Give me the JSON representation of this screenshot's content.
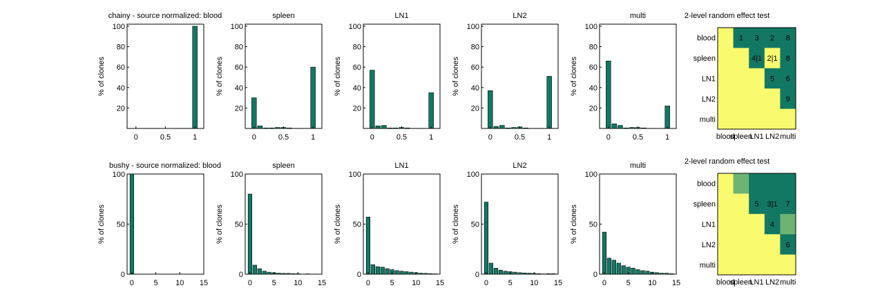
{
  "colors": {
    "bar": "#127864",
    "sig_dark": "#127864",
    "sig_light": "#6db372",
    "nonsig": "#fafa6e",
    "axis": "#000000",
    "background": "#ffffff"
  },
  "ylabel": "% of clones",
  "chart_data": [
    {
      "type": "bar",
      "row": "chainy",
      "title": "chainy - source normalized: blood",
      "ylabel": "% of clones",
      "x": [
        0,
        0.1,
        0.2,
        0.3,
        0.4,
        0.5,
        0.6,
        0.7,
        0.8,
        0.9,
        1
      ],
      "values": [
        0,
        0,
        0,
        0,
        0,
        0,
        0,
        0,
        0,
        0,
        100
      ],
      "xlim": [
        -0.15,
        1.15
      ],
      "ylim": [
        0,
        102
      ],
      "xticks": [
        0,
        0.5,
        1
      ],
      "xticklabels": [
        "0",
        "0.5",
        "1"
      ],
      "yticks": [
        20,
        40,
        60,
        80,
        100
      ],
      "yticklabels": [
        "20",
        "40",
        "60",
        "80",
        "100"
      ],
      "bar_width": 0.08
    },
    {
      "type": "bar",
      "row": "chainy",
      "title": "spleen",
      "ylabel": "% of clones",
      "x": [
        0,
        0.1,
        0.2,
        0.3,
        0.4,
        0.5,
        0.6,
        0.7,
        0.8,
        0.9,
        1
      ],
      "values": [
        30,
        2.5,
        0.5,
        0.5,
        1,
        1,
        0.5,
        0,
        0,
        0,
        60
      ],
      "xlim": [
        -0.15,
        1.15
      ],
      "ylim": [
        0,
        102
      ],
      "xticks": [
        0,
        0.5,
        1
      ],
      "xticklabels": [
        "0",
        "0.5",
        "1"
      ],
      "yticks": [
        20,
        40,
        60,
        80,
        100
      ],
      "yticklabels": [
        "20",
        "40",
        "60",
        "80",
        "100"
      ],
      "bar_width": 0.08
    },
    {
      "type": "bar",
      "row": "chainy",
      "title": "LN1",
      "ylabel": "% of clones",
      "x": [
        0,
        0.1,
        0.2,
        0.3,
        0.4,
        0.5,
        0.6,
        0.7,
        0.8,
        0.9,
        1
      ],
      "values": [
        57,
        2.5,
        3,
        0.5,
        0.5,
        1,
        0.5,
        0,
        0,
        0,
        35
      ],
      "xlim": [
        -0.15,
        1.15
      ],
      "ylim": [
        0,
        102
      ],
      "xticks": [
        0,
        0.5,
        1
      ],
      "xticklabels": [
        "0",
        "0.5",
        "1"
      ],
      "yticks": [
        20,
        40,
        60,
        80,
        100
      ],
      "yticklabels": [
        "20",
        "40",
        "60",
        "80",
        "100"
      ],
      "bar_width": 0.08
    },
    {
      "type": "bar",
      "row": "chainy",
      "title": "LN2",
      "ylabel": "% of clones",
      "x": [
        0,
        0.1,
        0.2,
        0.3,
        0.4,
        0.5,
        0.6,
        0.7,
        0.8,
        0.9,
        1
      ],
      "values": [
        37,
        2,
        3,
        0.5,
        1,
        1.5,
        0.5,
        0,
        0,
        0,
        51
      ],
      "xlim": [
        -0.15,
        1.15
      ],
      "ylim": [
        0,
        102
      ],
      "xticks": [
        0,
        0.5,
        1
      ],
      "xticklabels": [
        "0",
        "0.5",
        "1"
      ],
      "yticks": [
        20,
        40,
        60,
        80,
        100
      ],
      "yticklabels": [
        "20",
        "40",
        "60",
        "80",
        "100"
      ],
      "bar_width": 0.08
    },
    {
      "type": "bar",
      "row": "chainy",
      "title": "multi",
      "ylabel": "% of clones",
      "x": [
        0,
        0.1,
        0.2,
        0.3,
        0.4,
        0.5,
        0.6,
        0.7,
        0.8,
        0.9,
        1
      ],
      "values": [
        66,
        4.5,
        3,
        0.5,
        1,
        1,
        0.5,
        0,
        0,
        0,
        22
      ],
      "xlim": [
        -0.15,
        1.15
      ],
      "ylim": [
        0,
        102
      ],
      "xticks": [
        0,
        0.5,
        1
      ],
      "xticklabels": [
        "0",
        "0.5",
        "1"
      ],
      "yticks": [
        20,
        40,
        60,
        80,
        100
      ],
      "yticklabels": [
        "20",
        "40",
        "60",
        "80",
        "100"
      ],
      "bar_width": 0.08
    },
    {
      "type": "bar",
      "row": "bushy",
      "title": "bushy - source normalized: blood",
      "ylabel": "% of clones",
      "x": [
        0,
        1,
        2,
        3,
        4,
        5,
        6,
        7,
        8,
        9,
        10,
        11,
        12,
        13,
        14
      ],
      "values": [
        100,
        0,
        0,
        0,
        0,
        0,
        0,
        0,
        0,
        0,
        0,
        0,
        0,
        0,
        0
      ],
      "xlim": [
        -1,
        15
      ],
      "ylim": [
        0,
        100
      ],
      "xticks": [
        0,
        5,
        10,
        15
      ],
      "xticklabels": [
        "0",
        "5",
        "10",
        "15"
      ],
      "yticks": [
        0,
        50,
        100
      ],
      "yticklabels": [
        "0",
        "50",
        "100"
      ],
      "bar_width": 0.8
    },
    {
      "type": "bar",
      "row": "bushy",
      "title": "spleen",
      "ylabel": "% of clones",
      "x": [
        0,
        1,
        2,
        3,
        4,
        5,
        6,
        7,
        8,
        9,
        10,
        11,
        12,
        13,
        14
      ],
      "values": [
        80,
        9,
        5.5,
        3,
        2,
        1.5,
        1,
        0.8,
        0.8,
        0.5,
        0.4,
        0,
        0.3,
        0,
        0
      ],
      "xlim": [
        -1,
        15
      ],
      "ylim": [
        0,
        100
      ],
      "xticks": [
        0,
        5,
        10,
        15
      ],
      "xticklabels": [
        "0",
        "5",
        "10",
        "15"
      ],
      "yticks": [
        0,
        50,
        100
      ],
      "yticklabels": [
        "0",
        "50",
        "100"
      ],
      "bar_width": 0.8
    },
    {
      "type": "bar",
      "row": "bushy",
      "title": "LN1",
      "ylabel": "% of clones",
      "x": [
        0,
        1,
        2,
        3,
        4,
        5,
        6,
        7,
        8,
        9,
        10,
        11,
        12,
        13,
        14
      ],
      "values": [
        57,
        9.5,
        7.5,
        7,
        5.5,
        4.5,
        3.5,
        3,
        2.5,
        2,
        1.5,
        1,
        0.8,
        0.5,
        0.3
      ],
      "xlim": [
        -1,
        15
      ],
      "ylim": [
        0,
        100
      ],
      "xticks": [
        0,
        5,
        10,
        15
      ],
      "xticklabels": [
        "0",
        "5",
        "10",
        "15"
      ],
      "yticks": [
        0,
        50,
        100
      ],
      "yticklabels": [
        "0",
        "50",
        "100"
      ],
      "bar_width": 0.8
    },
    {
      "type": "bar",
      "row": "bushy",
      "title": "LN2",
      "ylabel": "% of clones",
      "x": [
        0,
        1,
        2,
        3,
        4,
        5,
        6,
        7,
        8,
        9,
        10,
        11,
        12,
        13,
        14
      ],
      "values": [
        72,
        11,
        6,
        4,
        3,
        2.5,
        2,
        1.5,
        1.2,
        1,
        0.8,
        0.5,
        0.3,
        0.5,
        0.5
      ],
      "xlim": [
        -1,
        15
      ],
      "ylim": [
        0,
        100
      ],
      "xticks": [
        0,
        5,
        10,
        15
      ],
      "xticklabels": [
        "0",
        "5",
        "10",
        "15"
      ],
      "yticks": [
        0,
        50,
        100
      ],
      "yticklabels": [
        "0",
        "50",
        "100"
      ],
      "bar_width": 0.8
    },
    {
      "type": "bar",
      "row": "bushy",
      "title": "multi",
      "ylabel": "% of clones",
      "x": [
        0,
        1,
        2,
        3,
        4,
        5,
        6,
        7,
        8,
        9,
        10,
        11,
        12,
        13,
        14
      ],
      "values": [
        42,
        16,
        14,
        11,
        8.5,
        7,
        6,
        4.5,
        3.5,
        3,
        2,
        1.5,
        1,
        1,
        0.5
      ],
      "xlim": [
        -1,
        15
      ],
      "ylim": [
        0,
        100
      ],
      "xticks": [
        0,
        5,
        10,
        15
      ],
      "xticklabels": [
        "0",
        "5",
        "10",
        "15"
      ],
      "yticks": [
        0,
        50,
        100
      ],
      "yticklabels": [
        "0",
        "50",
        "100"
      ],
      "bar_width": 0.8
    },
    {
      "type": "heatmap",
      "row": "chainy",
      "title": "2-level random effect test",
      "rows": [
        "blood",
        "spleen",
        "LN1",
        "LN2",
        "multi"
      ],
      "cols": [
        "blood",
        "spleen",
        "LN1",
        "LN2",
        "multi"
      ],
      "levels": [
        [
          0,
          2,
          2,
          2,
          2
        ],
        [
          0,
          0,
          2,
          0,
          2
        ],
        [
          0,
          0,
          0,
          2,
          2
        ],
        [
          0,
          0,
          0,
          0,
          2
        ],
        [
          0,
          0,
          0,
          0,
          0
        ]
      ],
      "labels": [
        [
          "",
          "1",
          "3",
          "2",
          "8"
        ],
        [
          "",
          "",
          "4|1",
          "2|1",
          "8"
        ],
        [
          "",
          "",
          "",
          "5",
          "6"
        ],
        [
          "",
          "",
          "",
          "",
          "9"
        ],
        [
          "",
          "",
          "",
          "",
          ""
        ]
      ]
    },
    {
      "type": "heatmap",
      "row": "bushy",
      "title": "2-level random effect test",
      "rows": [
        "blood",
        "spleen",
        "LN1",
        "LN2",
        "multi"
      ],
      "cols": [
        "blood",
        "spleen",
        "LN1",
        "LN2",
        "multi"
      ],
      "levels": [
        [
          0,
          1,
          2,
          2,
          2
        ],
        [
          0,
          0,
          2,
          2,
          2
        ],
        [
          0,
          0,
          0,
          2,
          1
        ],
        [
          0,
          0,
          0,
          0,
          2
        ],
        [
          0,
          0,
          0,
          0,
          0
        ]
      ],
      "labels": [
        [
          "",
          "",
          "",
          "",
          ""
        ],
        [
          "",
          "",
          "5",
          "3|1",
          "7"
        ],
        [
          "",
          "",
          "",
          "4",
          ""
        ],
        [
          "",
          "",
          "",
          "",
          "6"
        ],
        [
          "",
          "",
          "",
          "",
          ""
        ]
      ]
    }
  ]
}
